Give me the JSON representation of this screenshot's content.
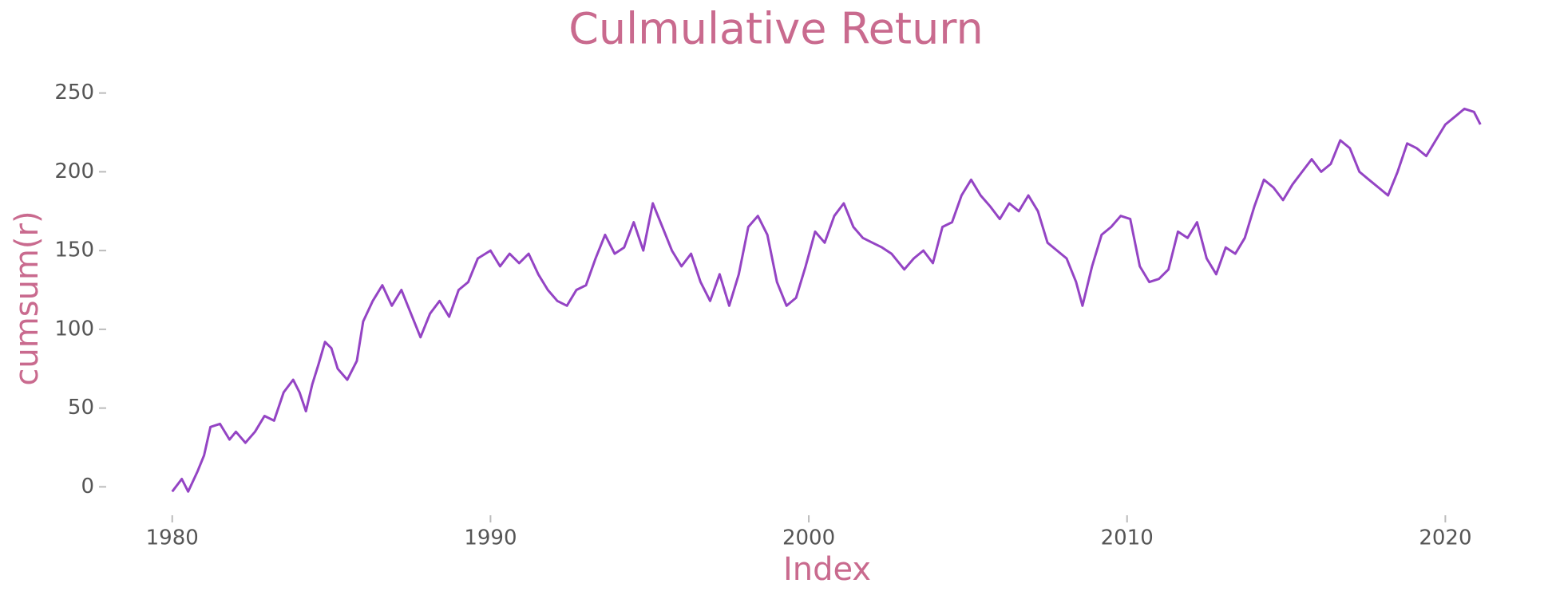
{
  "chart_data": {
    "type": "line",
    "title": "Culmulative Return",
    "x_label": "Index",
    "y_label": "cumsum(r)",
    "color": "#9444c4",
    "grid": false,
    "xlim": [
      1978,
      2023
    ],
    "xticks": [
      1980,
      1990,
      2000,
      2010,
      2020
    ],
    "ylim": [
      -15,
      265
    ],
    "yticks": [
      0,
      50,
      100,
      150,
      200,
      250
    ],
    "x": [
      1980.0,
      1980.3,
      1980.5,
      1980.8,
      1981.0,
      1981.2,
      1981.5,
      1981.8,
      1982.0,
      1982.3,
      1982.6,
      1982.9,
      1983.2,
      1983.5,
      1983.8,
      1984.0,
      1984.2,
      1984.4,
      1984.6,
      1984.8,
      1985.0,
      1985.2,
      1985.5,
      1985.8,
      1986.0,
      1986.3,
      1986.6,
      1986.9,
      1987.2,
      1987.5,
      1987.8,
      1988.1,
      1988.4,
      1988.7,
      1989.0,
      1989.3,
      1989.6,
      1990.0,
      1990.3,
      1990.6,
      1990.9,
      1991.2,
      1991.5,
      1991.8,
      1992.1,
      1992.4,
      1992.7,
      1993.0,
      1993.3,
      1993.6,
      1993.9,
      1994.2,
      1994.5,
      1994.8,
      1995.1,
      1995.4,
      1995.7,
      1996.0,
      1996.3,
      1996.6,
      1996.9,
      1997.2,
      1997.5,
      1997.8,
      1998.1,
      1998.4,
      1998.7,
      1999.0,
      1999.3,
      1999.6,
      1999.9,
      2000.2,
      2000.5,
      2000.8,
      2001.1,
      2001.4,
      2001.7,
      2002.0,
      2002.3,
      2002.6,
      2003.0,
      2003.3,
      2003.6,
      2003.9,
      2004.2,
      2004.5,
      2004.8,
      2005.1,
      2005.4,
      2005.7,
      2006.0,
      2006.3,
      2006.6,
      2006.9,
      2007.2,
      2007.5,
      2007.8,
      2008.1,
      2008.4,
      2008.6,
      2008.9,
      2009.2,
      2009.5,
      2009.8,
      2010.1,
      2010.4,
      2010.7,
      2011.0,
      2011.3,
      2011.6,
      2011.9,
      2012.2,
      2012.5,
      2012.8,
      2013.1,
      2013.4,
      2013.7,
      2014.0,
      2014.3,
      2014.6,
      2014.9,
      2015.2,
      2015.5,
      2015.8,
      2016.1,
      2016.4,
      2016.7,
      2017.0,
      2017.3,
      2017.6,
      2017.9,
      2018.2,
      2018.5,
      2018.8,
      2019.1,
      2019.4,
      2019.7,
      2020.0,
      2020.3,
      2020.6,
      2020.9,
      2021.1
    ],
    "values": [
      -3,
      5,
      -3,
      10,
      20,
      38,
      40,
      30,
      35,
      28,
      35,
      45,
      42,
      60,
      68,
      60,
      48,
      65,
      78,
      92,
      88,
      75,
      68,
      80,
      105,
      118,
      128,
      115,
      125,
      110,
      95,
      110,
      118,
      108,
      125,
      130,
      145,
      150,
      140,
      148,
      142,
      148,
      135,
      125,
      118,
      115,
      125,
      128,
      145,
      160,
      148,
      152,
      168,
      150,
      180,
      165,
      150,
      140,
      148,
      130,
      118,
      135,
      115,
      135,
      165,
      172,
      160,
      130,
      115,
      120,
      140,
      162,
      155,
      172,
      180,
      165,
      158,
      155,
      152,
      148,
      138,
      145,
      150,
      142,
      165,
      168,
      185,
      195,
      185,
      178,
      170,
      180,
      175,
      185,
      175,
      155,
      150,
      145,
      130,
      115,
      140,
      160,
      165,
      172,
      170,
      140,
      130,
      132,
      138,
      162,
      158,
      168,
      145,
      135,
      152,
      148,
      158,
      178,
      195,
      190,
      182,
      192,
      200,
      208,
      200,
      205,
      220,
      215,
      200,
      195,
      190,
      185,
      200,
      218,
      215,
      210,
      220,
      230,
      235,
      240,
      238,
      230
    ]
  }
}
